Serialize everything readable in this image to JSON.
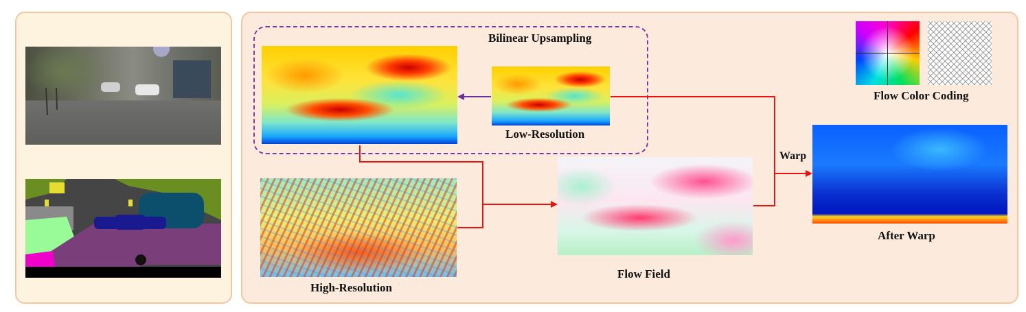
{
  "labels": {
    "bilinear_upsampling": "Bilinear Upsampling",
    "low_resolution": "Low-Resolution",
    "high_resolution": "High-Resolution",
    "flow_field": "Flow Field",
    "after_warp": "After Warp",
    "flow_color_coding": "Flow Color Coding",
    "warp": "Warp"
  },
  "colors": {
    "arrow_red": "#e8140f",
    "arrow_purple": "#6a2f9c",
    "panel_border": "#f0c7a0",
    "dashed_border": "#7d3aa6"
  }
}
